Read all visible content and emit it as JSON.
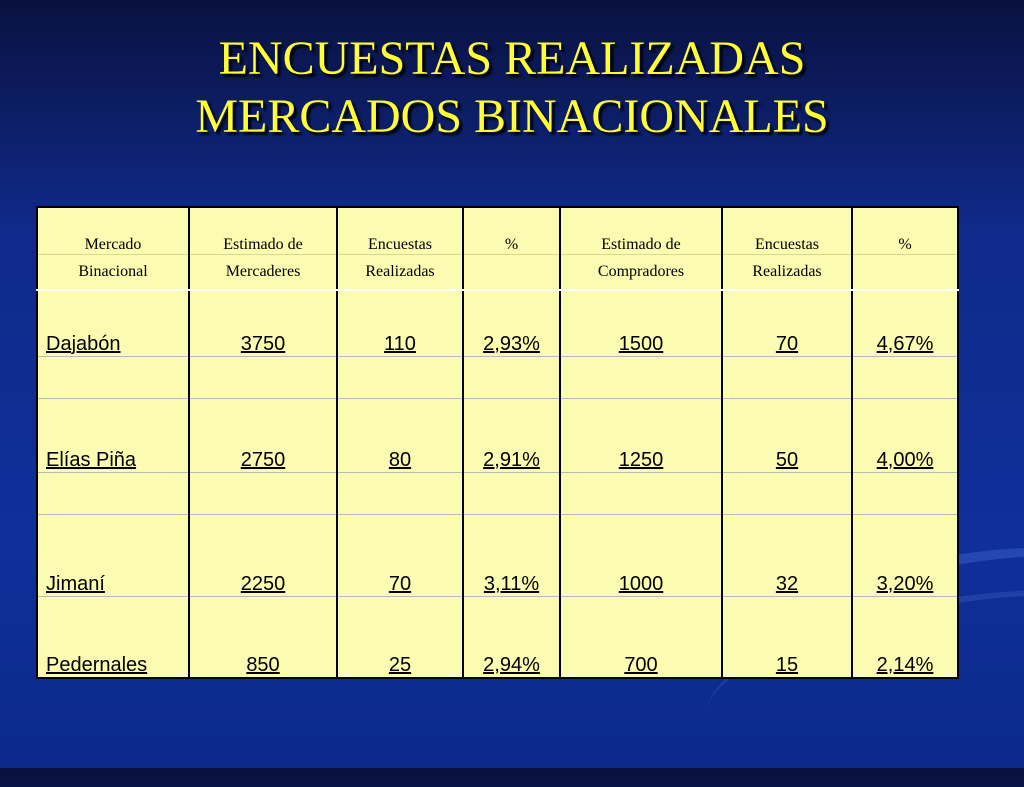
{
  "title": {
    "line1": "ENCUESTAS REALIZADAS",
    "line2": "MERCADOS BINACIONALES"
  },
  "table": {
    "headers_row1": [
      "Mercado",
      "Estimado de",
      "Encuestas",
      "%",
      "Estimado de",
      "Encuestas",
      "%"
    ],
    "headers_row2": [
      "Binacional",
      "Mercaderes",
      "Realizadas",
      "",
      "Compradores",
      "Realizadas",
      ""
    ],
    "rows": [
      [
        "Dajabón",
        "3750",
        "110",
        "2,93%",
        "1500",
        "70",
        "4,67%"
      ],
      [
        "Elías Piña",
        "2750",
        "80",
        "2,91%",
        "1250",
        "50",
        "4,00%"
      ],
      [
        "Jimaní",
        "2250",
        "70",
        "3,11%",
        "1000",
        "32",
        "3,20%"
      ],
      [
        "Pedernales",
        "850",
        "25",
        "2,94%",
        "700",
        "15",
        "2,14%"
      ]
    ]
  },
  "colors": {
    "title": "#ffff33",
    "table_background": "#fbfbb1",
    "background": "#0f2f9a"
  }
}
